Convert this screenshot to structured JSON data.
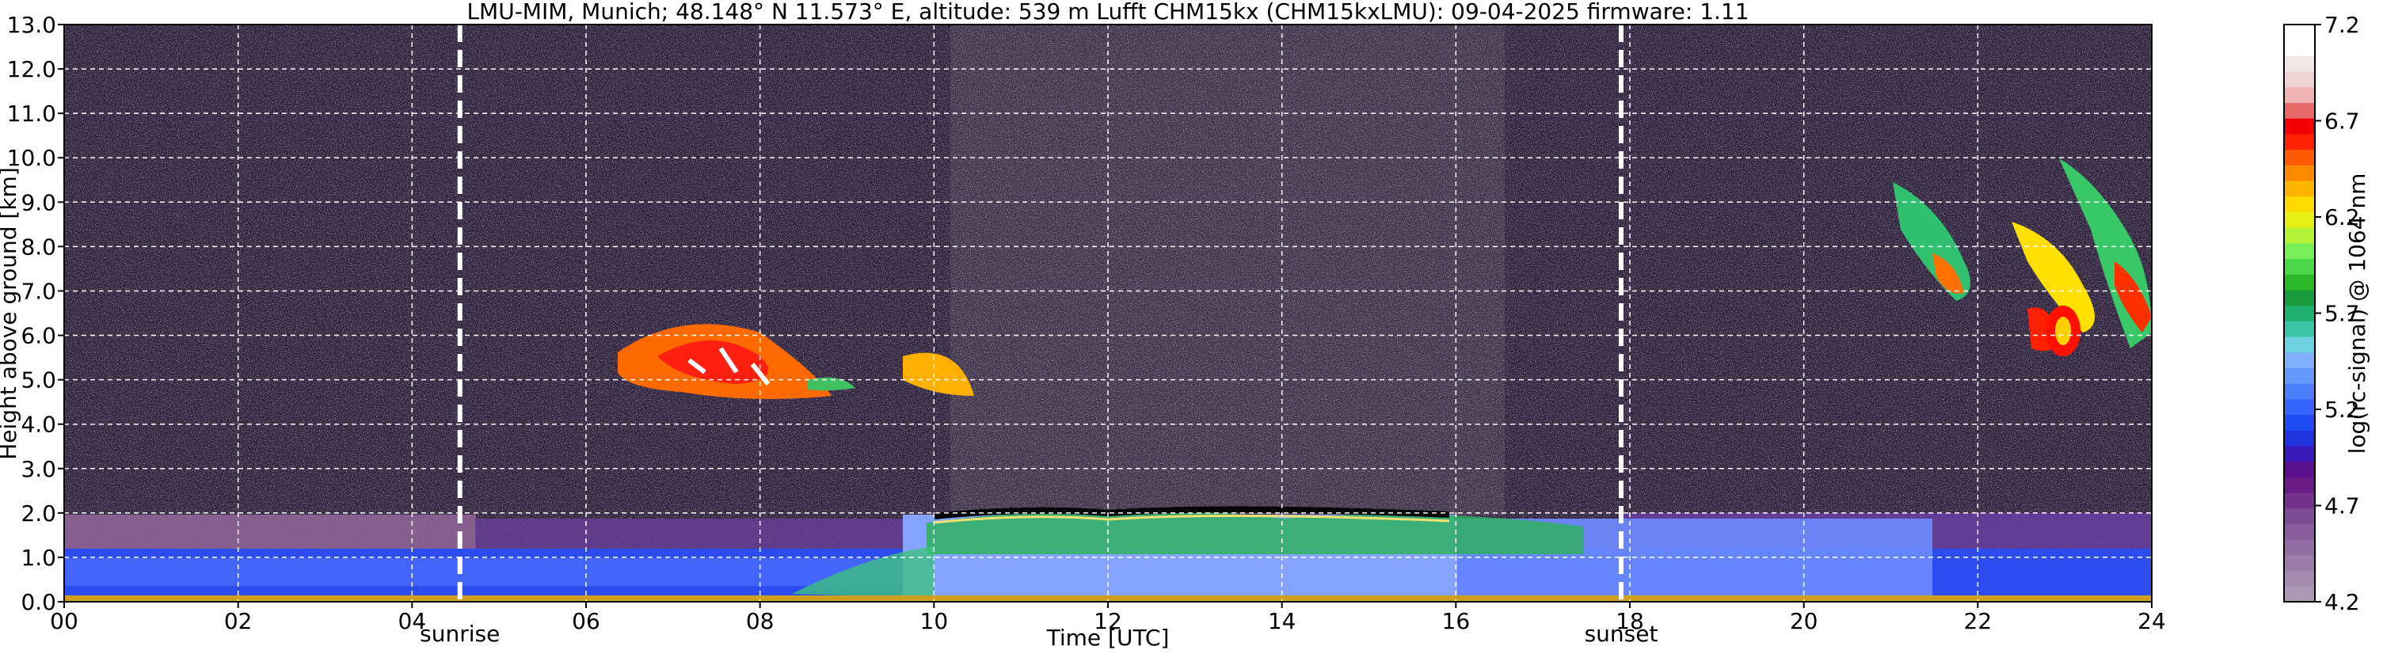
{
  "chart_data": {
    "type": "heatmap",
    "title": "LMU-MIM, Munich; 48.148° N 11.573° E, altitude: 539 m    Lufft CHM15kx (CHM15kxLMU): 09-04-2025    firmware: 1.11",
    "xlabel": "Time [UTC]",
    "ylabel": "Height above ground [km]",
    "colorbar_label": "log(rc-signal) @ 1064 nm",
    "xlim": [
      0,
      24
    ],
    "xticks": [
      {
        "value": 0,
        "label": "00"
      },
      {
        "value": 2,
        "label": "02"
      },
      {
        "value": 4,
        "label": "04"
      },
      {
        "value": 6,
        "label": "06"
      },
      {
        "value": 8,
        "label": "08"
      },
      10,
      12,
      14,
      16,
      18,
      20,
      22,
      24
    ],
    "ylim": [
      0,
      13
    ],
    "yticks": [
      {
        "value": 0,
        "label": "0.0"
      },
      {
        "value": 1,
        "label": "1.0"
      },
      {
        "value": 2,
        "label": "2.0"
      },
      {
        "value": 3,
        "label": "3.0"
      },
      {
        "value": 4,
        "label": "4.0"
      },
      {
        "value": 5,
        "label": "5.0"
      },
      {
        "value": 6,
        "label": "6.0"
      },
      {
        "value": 7,
        "label": "7.0"
      },
      {
        "value": 8,
        "label": "8.0"
      },
      {
        "value": 9,
        "label": "9.0"
      },
      {
        "value": 10,
        "label": "10.0"
      },
      {
        "value": 11,
        "label": "11.0"
      },
      {
        "value": 12,
        "label": "12.0"
      },
      {
        "value": 13,
        "label": "13.0"
      }
    ],
    "clim": [
      4.2,
      7.2
    ],
    "cticks": [
      4.2,
      4.7,
      5.2,
      5.7,
      6.2,
      6.7,
      7.2
    ],
    "colormap": [
      "#ad98b5",
      "#a58bb0",
      "#9c7daa",
      "#936ea4",
      "#8a5e9d",
      "#7f4b95",
      "#73338c",
      "#681c84",
      "#5a0f8c",
      "#3b18b8",
      "#2232dc",
      "#1e4cf2",
      "#3466ff",
      "#4c80ff",
      "#6699ff",
      "#7fb0ff",
      "#6ed2e0",
      "#3dc4a4",
      "#22b070",
      "#1a9a3a",
      "#28b828",
      "#48d848",
      "#78ee58",
      "#b4f238",
      "#e6f014",
      "#ffdc00",
      "#ffb400",
      "#ff8a00",
      "#ff5a00",
      "#ff2000",
      "#f00000",
      "#e66a6a",
      "#f0b4b4",
      "#efd4d4",
      "#f2e6e6",
      "#ffffff",
      "#ffffff"
    ],
    "grid": true,
    "annotations": [
      {
        "label": "sunrise",
        "x": 4.55
      },
      {
        "label": "sunset",
        "x": 17.9
      }
    ]
  }
}
